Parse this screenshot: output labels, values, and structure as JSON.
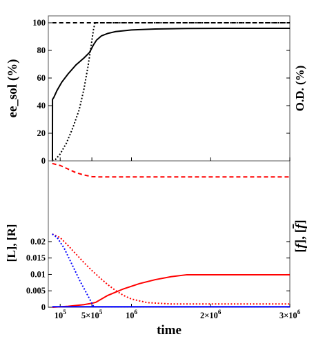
{
  "chart_data": [
    {
      "panel": "top",
      "type": "line",
      "ylabel": "ee_sol (%)",
      "ylabel_right": "O.D. (%)",
      "ylim": [
        0,
        105
      ],
      "y_ticks": [
        0,
        20,
        40,
        60,
        80,
        100
      ],
      "y_tick_labels": [
        "0",
        "20",
        "40",
        "60",
        "80",
        "100"
      ],
      "series": [
        {
          "style": "solid",
          "color": "#000000",
          "points": [
            [
              0,
              0
            ],
            [
              2000,
              0
            ],
            [
              3000,
              44.5
            ],
            [
              20000,
              46
            ],
            [
              60000,
              51
            ],
            [
              120000,
              57
            ],
            [
              200000,
              63
            ],
            [
              300000,
              69.5
            ],
            [
              400000,
              74.5
            ],
            [
              470000,
              78.5
            ],
            [
              520000,
              84
            ],
            [
              560000,
              87.5
            ],
            [
              620000,
              90.5
            ],
            [
              700000,
              92.3
            ],
            [
              800000,
              93.6
            ],
            [
              1000000,
              94.8
            ],
            [
              1300000,
              95.5
            ],
            [
              1700000,
              95.9
            ],
            [
              2200000,
              96.0
            ],
            [
              3000000,
              96.0
            ]
          ]
        },
        {
          "style": "dotted",
          "color": "#000000",
          "points": [
            [
              0,
              0
            ],
            [
              40000,
              1
            ],
            [
              100000,
              5
            ],
            [
              180000,
              13
            ],
            [
              260000,
              24
            ],
            [
              340000,
              37
            ],
            [
              400000,
              52
            ],
            [
              450000,
              68
            ],
            [
              490000,
              83
            ],
            [
              520000,
              95
            ],
            [
              540000,
              100
            ],
            [
              3000000,
              100
            ]
          ]
        },
        {
          "style": "dashed",
          "color": "#000000",
          "points": [
            [
              0,
              100
            ],
            [
              3000000,
              100
            ]
          ]
        }
      ]
    },
    {
      "panel": "bottom",
      "type": "line",
      "xlabel": "time",
      "ylabel": "[L], [R]",
      "ylabel_right_parts": [
        "[",
        "f",
        "], [",
        "f",
        "]"
      ],
      "xlim": [
        -50000,
        3000000
      ],
      "x_ticks": [
        100000,
        500000,
        1000000,
        2000000,
        3000000
      ],
      "x_tick_labels": [
        {
          "base": "10",
          "exp": "5"
        },
        {
          "base": "5×10",
          "exp": "5"
        },
        {
          "base": "10",
          "exp": "6"
        },
        {
          "base": "2×10",
          "exp": "6"
        },
        {
          "base": "3×10",
          "exp": "6"
        }
      ],
      "ylim": [
        0,
        0.0446
      ],
      "y_ticks": [
        0,
        0.005,
        0.01,
        0.015,
        0.02
      ],
      "y_tick_labels": [
        "0",
        "0.005",
        "0.01",
        "0.015",
        "0.02"
      ],
      "series": [
        {
          "style": "dashed",
          "color": "#ff0000",
          "points": [
            [
              0,
              0.0438
            ],
            [
              100000,
              0.0432
            ],
            [
              200000,
              0.0421
            ],
            [
              300000,
              0.041
            ],
            [
              400000,
              0.0403
            ],
            [
              500000,
              0.0398
            ],
            [
              600000,
              0.0397
            ],
            [
              3000000,
              0.0397
            ]
          ]
        },
        {
          "style": "solid",
          "color": "#ff0000",
          "points": [
            [
              0,
              0
            ],
            [
              200000,
              0.0003
            ],
            [
              400000,
              0.0008
            ],
            [
              500000,
              0.0012
            ],
            [
              550000,
              0.0015
            ],
            [
              700000,
              0.0036
            ],
            [
              900000,
              0.0056
            ],
            [
              1100000,
              0.0072
            ],
            [
              1300000,
              0.0084
            ],
            [
              1500000,
              0.0093
            ],
            [
              1700000,
              0.0099
            ],
            [
              3000000,
              0.0099
            ]
          ]
        },
        {
          "style": "dotted",
          "color": "#ff0000",
          "points": [
            [
              0,
              0.0223
            ],
            [
              100000,
              0.0212
            ],
            [
              200000,
              0.0188
            ],
            [
              300000,
              0.0162
            ],
            [
              400000,
              0.0136
            ],
            [
              500000,
              0.0112
            ],
            [
              600000,
              0.009
            ],
            [
              700000,
              0.0069
            ],
            [
              800000,
              0.0051
            ],
            [
              900000,
              0.0036
            ],
            [
              1000000,
              0.0025
            ],
            [
              1200000,
              0.0014
            ],
            [
              1500000,
              0.001
            ],
            [
              3000000,
              0.001
            ]
          ]
        },
        {
          "style": "dotted",
          "color": "#0000ff",
          "points": [
            [
              0,
              0.0223
            ],
            [
              60000,
              0.0213
            ],
            [
              150000,
              0.018
            ],
            [
              250000,
              0.013
            ],
            [
              350000,
              0.008
            ],
            [
              450000,
              0.0035
            ],
            [
              520000,
              0.0003
            ],
            [
              540000,
              0.0001
            ],
            [
              3000000,
              0.0001
            ]
          ]
        },
        {
          "style": "solid",
          "color": "#0000ff",
          "points": [
            [
              0,
              0.00015
            ],
            [
              3000000,
              0.00015
            ]
          ]
        }
      ]
    }
  ]
}
